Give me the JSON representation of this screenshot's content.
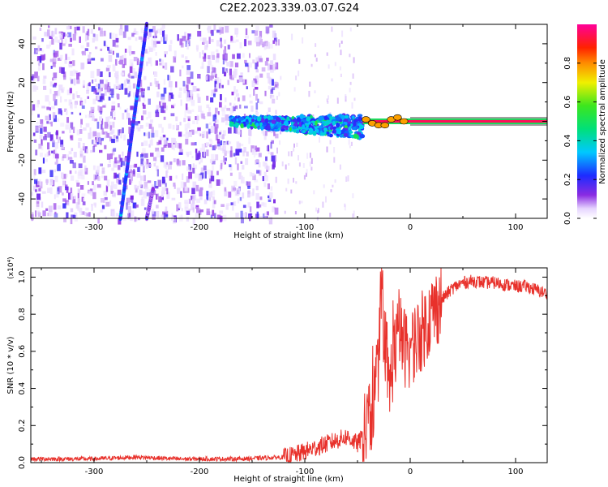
{
  "title": "C2E2.2023.339.03.07.G24",
  "colors": {
    "snr_line": "#e8312b",
    "axis": "#000000",
    "background": "#ffffff"
  },
  "chart_data": [
    {
      "type": "heatmap",
      "xlabel": "Height of straight line (km)",
      "ylabel": "Frequency (Hz)",
      "xlim": [
        -360,
        130
      ],
      "ylim": [
        -50,
        50
      ],
      "xticks": [
        -300,
        -200,
        -100,
        0,
        100
      ],
      "yticks": [
        -40,
        -20,
        0,
        20,
        40
      ],
      "colorbar": {
        "label": "Normalized spectral amplitude",
        "range": [
          0,
          1
        ],
        "ticks": [
          0.0,
          0.2,
          0.4,
          0.6,
          0.8
        ],
        "tick_labels": [
          "0.0",
          "0.2",
          "0.4",
          "0.6",
          "0.8"
        ],
        "colormap": "rainbow (white-violet-blue-cyan-green-yellow-red-magenta)"
      },
      "features": [
        {
          "kind": "diagonal streak",
          "from": [
            -275,
            -50
          ],
          "to": [
            -250,
            50
          ],
          "amplitude": 0.2
        },
        {
          "kind": "diagonal streak (faint)",
          "from": [
            -250,
            -50
          ],
          "to": [
            -244,
            -35
          ],
          "amplitude": 0.1
        },
        {
          "kind": "noise region",
          "x_range": [
            -360,
            -130
          ],
          "amplitude": 0.1
        },
        {
          "kind": "broad signal",
          "x_range": [
            -170,
            -45
          ],
          "freq_center": 0,
          "amplitude": 0.4
        },
        {
          "kind": "strong tone",
          "x_range": [
            -45,
            130
          ],
          "freq": 0,
          "amplitude": 0.95
        }
      ]
    },
    {
      "type": "line",
      "xlabel": "Height of straight line (km)",
      "ylabel": "SNR (10 * v/v)",
      "y_multiplier": "(x10⁴)",
      "xlim": [
        -360,
        130
      ],
      "ylim": [
        0.0,
        1.05
      ],
      "xticks": [
        -300,
        -200,
        -100,
        0,
        100
      ],
      "yticks": [
        0.0,
        0.2,
        0.4,
        0.6,
        0.8,
        1.0
      ],
      "ytick_labels": [
        "0.0",
        "0.2",
        "0.4",
        "0.6",
        "0.8",
        "1.0"
      ],
      "series": [
        {
          "x": [
            -360,
            -340,
            -320,
            -300,
            -280,
            -260,
            -240,
            -220,
            -200,
            -180,
            -160,
            -140,
            -120,
            -110,
            -100,
            -90,
            -80,
            -70,
            -60,
            -50,
            -45,
            -40,
            -35,
            -30,
            -27,
            -25,
            -20,
            -15,
            -10,
            -5,
            0,
            10,
            20,
            30,
            40,
            50,
            60,
            70,
            80,
            90,
            100,
            110,
            120,
            130
          ],
          "y": [
            0.02,
            0.02,
            0.02,
            0.02,
            0.025,
            0.03,
            0.025,
            0.02,
            0.02,
            0.02,
            0.02,
            0.025,
            0.03,
            0.04,
            0.06,
            0.08,
            0.1,
            0.12,
            0.14,
            0.1,
            0.14,
            0.2,
            0.3,
            0.55,
            0.88,
            0.55,
            0.4,
            0.6,
            0.7,
            0.62,
            0.62,
            0.7,
            0.8,
            0.88,
            0.94,
            0.97,
            0.98,
            0.97,
            0.97,
            0.96,
            0.95,
            0.95,
            0.93,
            0.91
          ]
        }
      ]
    }
  ]
}
